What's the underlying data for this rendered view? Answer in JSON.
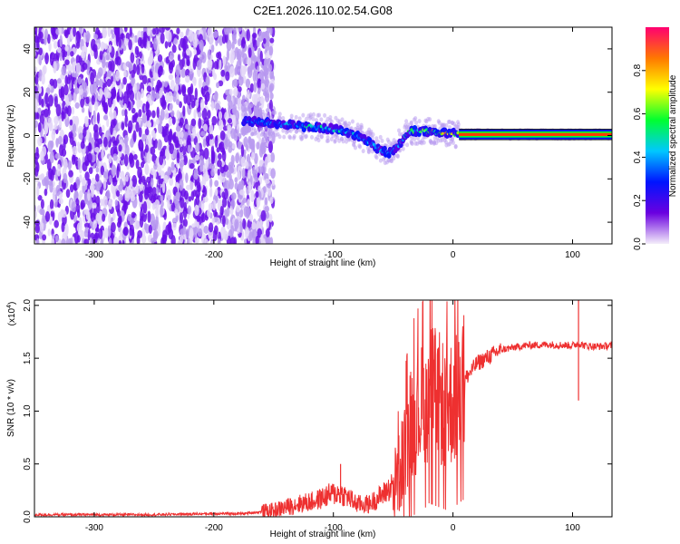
{
  "figure_title": "C2E1.2026.110.02.54.G08",
  "chart_data": [
    {
      "type": "heatmap",
      "xlabel": "Height of straight line (km)",
      "ylabel": "Frequency (Hz)",
      "xlim": [
        -350,
        133
      ],
      "ylim": [
        -50,
        50
      ],
      "x_ticks": [
        -300,
        -200,
        -100,
        0,
        100
      ],
      "x_tick_labels": [
        "-300",
        "-200",
        "-100",
        "0",
        "100"
      ],
      "y_ticks": [
        -40,
        -20,
        0,
        20,
        40
      ],
      "y_tick_labels": [
        "-40",
        "-20",
        "0",
        "20",
        "40"
      ],
      "grid": false,
      "noise_region_x": [
        -350,
        -160
      ],
      "signal_track": {
        "x": [
          -175,
          -160,
          -140,
          -120,
          -100,
          -85,
          -70,
          -60,
          -52,
          -45,
          -40,
          -35,
          -28,
          -20,
          -10,
          0,
          5,
          50,
          100,
          133
        ],
        "frequency": [
          7,
          6,
          5,
          4,
          3,
          1,
          -3,
          -7,
          -8,
          -4,
          0,
          2,
          2,
          2,
          1,
          1,
          0.5,
          0.5,
          0.5,
          0.5
        ],
        "amplitude": [
          0.35,
          0.4,
          0.45,
          0.5,
          0.5,
          0.45,
          0.45,
          0.4,
          0.4,
          0.45,
          0.5,
          0.55,
          0.6,
          0.7,
          0.85,
          0.9,
          0.95,
          0.95,
          0.95,
          0.95
        ]
      },
      "colorbar": {
        "label": "Normalized spectral amplitude",
        "range": [
          0,
          1
        ],
        "ticks": [
          0.0,
          0.2,
          0.4,
          0.6,
          0.8
        ],
        "tick_labels": [
          "0.0",
          "0.2",
          "0.4",
          "0.6",
          "0.8"
        ],
        "colormap": [
          "#f4eefa",
          "#6a00e0",
          "#0014ff",
          "#00c8ff",
          "#00ff30",
          "#ffff00",
          "#ff7800",
          "#ff0070"
        ]
      }
    },
    {
      "type": "line",
      "xlabel": "Height of straight line (km)",
      "ylabel": "SNR (10 * v/v)",
      "y_scale_label": "(x10",
      "y_scale_exponent": "4",
      "y_scale_close": ")",
      "xlim": [
        -350,
        133
      ],
      "ylim": [
        0,
        2.05
      ],
      "x_ticks": [
        -300,
        -200,
        -100,
        0,
        100
      ],
      "x_tick_labels": [
        "-300",
        "-200",
        "-100",
        "0",
        "100"
      ],
      "y_ticks": [
        0.0,
        0.5,
        1.0,
        1.5,
        2.0
      ],
      "y_tick_labels": [
        "0.0",
        "0.5",
        "1.0",
        "1.5",
        "2.0"
      ],
      "grid": false,
      "series": [
        {
          "name": "SNR",
          "color": "#ee3030",
          "x": [
            -350,
            -300,
            -250,
            -200,
            -175,
            -150,
            -130,
            -115,
            -105,
            -100,
            -95,
            -90,
            -80,
            -70,
            -60,
            -50,
            -45,
            -40,
            -35,
            -30,
            -25,
            -20,
            -15,
            -10,
            -5,
            0,
            10,
            20,
            40,
            60,
            80,
            100,
            105,
            110,
            120,
            133
          ],
          "values": [
            0.02,
            0.02,
            0.02,
            0.03,
            0.03,
            0.06,
            0.12,
            0.15,
            0.2,
            0.22,
            0.22,
            0.2,
            0.12,
            0.12,
            0.2,
            0.3,
            0.4,
            0.65,
            0.9,
            1.0,
            1.05,
            1.2,
            1.15,
            1.1,
            1.05,
            1.1,
            1.3,
            1.45,
            1.58,
            1.62,
            1.63,
            1.62,
            1.64,
            1.62,
            1.61,
            1.62
          ]
        }
      ],
      "spikes": [
        {
          "x": -94,
          "y": 0.5
        },
        {
          "x": 105,
          "y": 2.05
        },
        {
          "x": 105,
          "y": 1.1
        }
      ]
    }
  ]
}
